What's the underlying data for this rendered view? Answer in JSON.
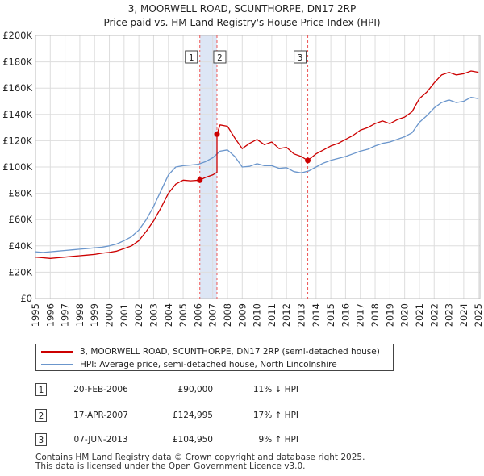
{
  "title": {
    "line1": "3, MOORWELL ROAD, SCUNTHORPE, DN17 2RP",
    "line2": "Price paid vs. HM Land Registry's House Price Index (HPI)"
  },
  "colors": {
    "property": "#cc0000",
    "hpi": "#6b96cc",
    "shade": "#dde6f5",
    "marker_line": "#ee5555",
    "grid": "#dddddd"
  },
  "chart_data": {
    "type": "line",
    "title": "3, MOORWELL ROAD, SCUNTHORPE, DN17 2RP — Price paid vs. HM Land Registry's House Price Index (HPI)",
    "xlabel": "",
    "ylabel": "",
    "xlim": [
      1995,
      2025.1
    ],
    "ylim": [
      0,
      200000
    ],
    "y_ticks": [
      0,
      20000,
      40000,
      60000,
      80000,
      100000,
      120000,
      140000,
      160000,
      180000,
      200000
    ],
    "y_tick_labels": [
      "£0",
      "£20K",
      "£40K",
      "£60K",
      "£80K",
      "£100K",
      "£120K",
      "£140K",
      "£160K",
      "£180K",
      "£200K"
    ],
    "x_ticks": [
      1995,
      1996,
      1997,
      1998,
      1999,
      2000,
      2001,
      2002,
      2003,
      2004,
      2005,
      2006,
      2007,
      2008,
      2009,
      2010,
      2011,
      2012,
      2013,
      2014,
      2015,
      2016,
      2017,
      2018,
      2019,
      2020,
      2021,
      2022,
      2023,
      2024,
      2025
    ],
    "x_tick_labels": [
      "1995",
      "1996",
      "1997",
      "1998",
      "1999",
      "2000",
      "2001",
      "2002",
      "2003",
      "2004",
      "2005",
      "2006",
      "2007",
      "2008",
      "2009",
      "2010",
      "2011",
      "2012",
      "2013",
      "2014",
      "2015",
      "2016",
      "2017",
      "2018",
      "2019",
      "2020",
      "2021",
      "2022",
      "2023",
      "2024",
      "2025"
    ],
    "grid": true,
    "shaded_span": [
      2006.13,
      2007.29
    ],
    "series": [
      {
        "name": "3, MOORWELL ROAD, SCUNTHORPE, DN17 2RP (semi-detached house)",
        "color": "#cc0000",
        "x": [
          1995.0,
          1995.5,
          1996.0,
          1996.5,
          1997.0,
          1997.5,
          1998.0,
          1998.5,
          1999.0,
          1999.5,
          2000.0,
          2000.5,
          2001.0,
          2001.5,
          2002.0,
          2002.5,
          2003.0,
          2003.5,
          2004.0,
          2004.5,
          2005.0,
          2005.5,
          2006.13,
          2006.5,
          2007.0,
          2007.29,
          2007.29,
          2007.5,
          2008.0,
          2008.5,
          2009.0,
          2009.5,
          2010.0,
          2010.5,
          2011.0,
          2011.5,
          2012.0,
          2012.5,
          2013.0,
          2013.44,
          2013.44,
          2014.0,
          2014.5,
          2015.0,
          2015.5,
          2016.0,
          2016.5,
          2017.0,
          2017.5,
          2018.0,
          2018.5,
          2019.0,
          2019.5,
          2020.0,
          2020.5,
          2021.0,
          2021.5,
          2022.0,
          2022.5,
          2023.0,
          2023.5,
          2024.0,
          2024.5,
          2025.0
        ],
        "values": [
          31500,
          31000,
          30500,
          31000,
          31500,
          32000,
          32500,
          33000,
          33500,
          34500,
          35000,
          36000,
          38000,
          40000,
          44000,
          51000,
          59000,
          69000,
          80000,
          87000,
          90000,
          89500,
          90000,
          92000,
          94000,
          96000,
          124995,
          132000,
          131000,
          122000,
          114000,
          118000,
          121000,
          117000,
          119000,
          114000,
          115000,
          110000,
          108000,
          104950,
          104950,
          110000,
          113000,
          116000,
          118000,
          121000,
          124000,
          128000,
          130000,
          133000,
          135000,
          133000,
          136000,
          138000,
          142000,
          152000,
          157000,
          164000,
          170000,
          172000,
          170000,
          171000,
          173000,
          172000
        ]
      },
      {
        "name": "HPI: Average price, semi-detached house, North Lincolnshire",
        "color": "#6b96cc",
        "x": [
          1995.0,
          1995.5,
          1996.0,
          1996.5,
          1997.0,
          1997.5,
          1998.0,
          1998.5,
          1999.0,
          1999.5,
          2000.0,
          2000.5,
          2001.0,
          2001.5,
          2002.0,
          2002.5,
          2003.0,
          2003.5,
          2004.0,
          2004.5,
          2005.0,
          2005.5,
          2006.0,
          2006.5,
          2007.0,
          2007.5,
          2008.0,
          2008.5,
          2009.0,
          2009.5,
          2010.0,
          2010.5,
          2011.0,
          2011.5,
          2012.0,
          2012.5,
          2013.0,
          2013.5,
          2014.0,
          2014.5,
          2015.0,
          2015.5,
          2016.0,
          2016.5,
          2017.0,
          2017.5,
          2018.0,
          2018.5,
          2019.0,
          2019.5,
          2020.0,
          2020.5,
          2021.0,
          2021.5,
          2022.0,
          2022.5,
          2023.0,
          2023.5,
          2024.0,
          2024.5,
          2025.0
        ],
        "values": [
          35500,
          35000,
          35500,
          36000,
          36500,
          37000,
          37500,
          38000,
          38500,
          39000,
          40000,
          41500,
          44000,
          47000,
          52000,
          60000,
          70000,
          82000,
          94000,
          100000,
          101000,
          101500,
          102000,
          104000,
          107000,
          112000,
          113000,
          108000,
          100000,
          100500,
          102500,
          101000,
          101000,
          99000,
          99500,
          96500,
          95500,
          97000,
          100000,
          103000,
          105000,
          106500,
          108000,
          110000,
          112000,
          113500,
          116000,
          118000,
          119000,
          121000,
          123000,
          126000,
          134000,
          139000,
          145000,
          149000,
          151000,
          149000,
          150000,
          153000,
          152000
        ]
      }
    ],
    "sales": [
      {
        "label": "1",
        "x": 2006.13,
        "value": 90000
      },
      {
        "label": "2",
        "x": 2007.29,
        "value": 124995
      },
      {
        "label": "3",
        "x": 2013.44,
        "value": 104950
      }
    ],
    "legend_position": "below"
  },
  "legend": {
    "property_label": "3, MOORWELL ROAD, SCUNTHORPE, DN17 2RP (semi-detached house)",
    "hpi_label": "HPI: Average price, semi-detached house, North Lincolnshire"
  },
  "transactions": [
    {
      "num": "1",
      "date": "20-FEB-2006",
      "price": "£90,000",
      "hpi": "11% ↓ HPI"
    },
    {
      "num": "2",
      "date": "17-APR-2007",
      "price": "£124,995",
      "hpi": "17% ↑ HPI"
    },
    {
      "num": "3",
      "date": "07-JUN-2013",
      "price": "£104,950",
      "hpi": "9% ↑ HPI"
    }
  ],
  "footer": {
    "line1": "Contains HM Land Registry data © Crown copyright and database right 2025.",
    "line2": "This data is licensed under the Open Government Licence v3.0."
  }
}
